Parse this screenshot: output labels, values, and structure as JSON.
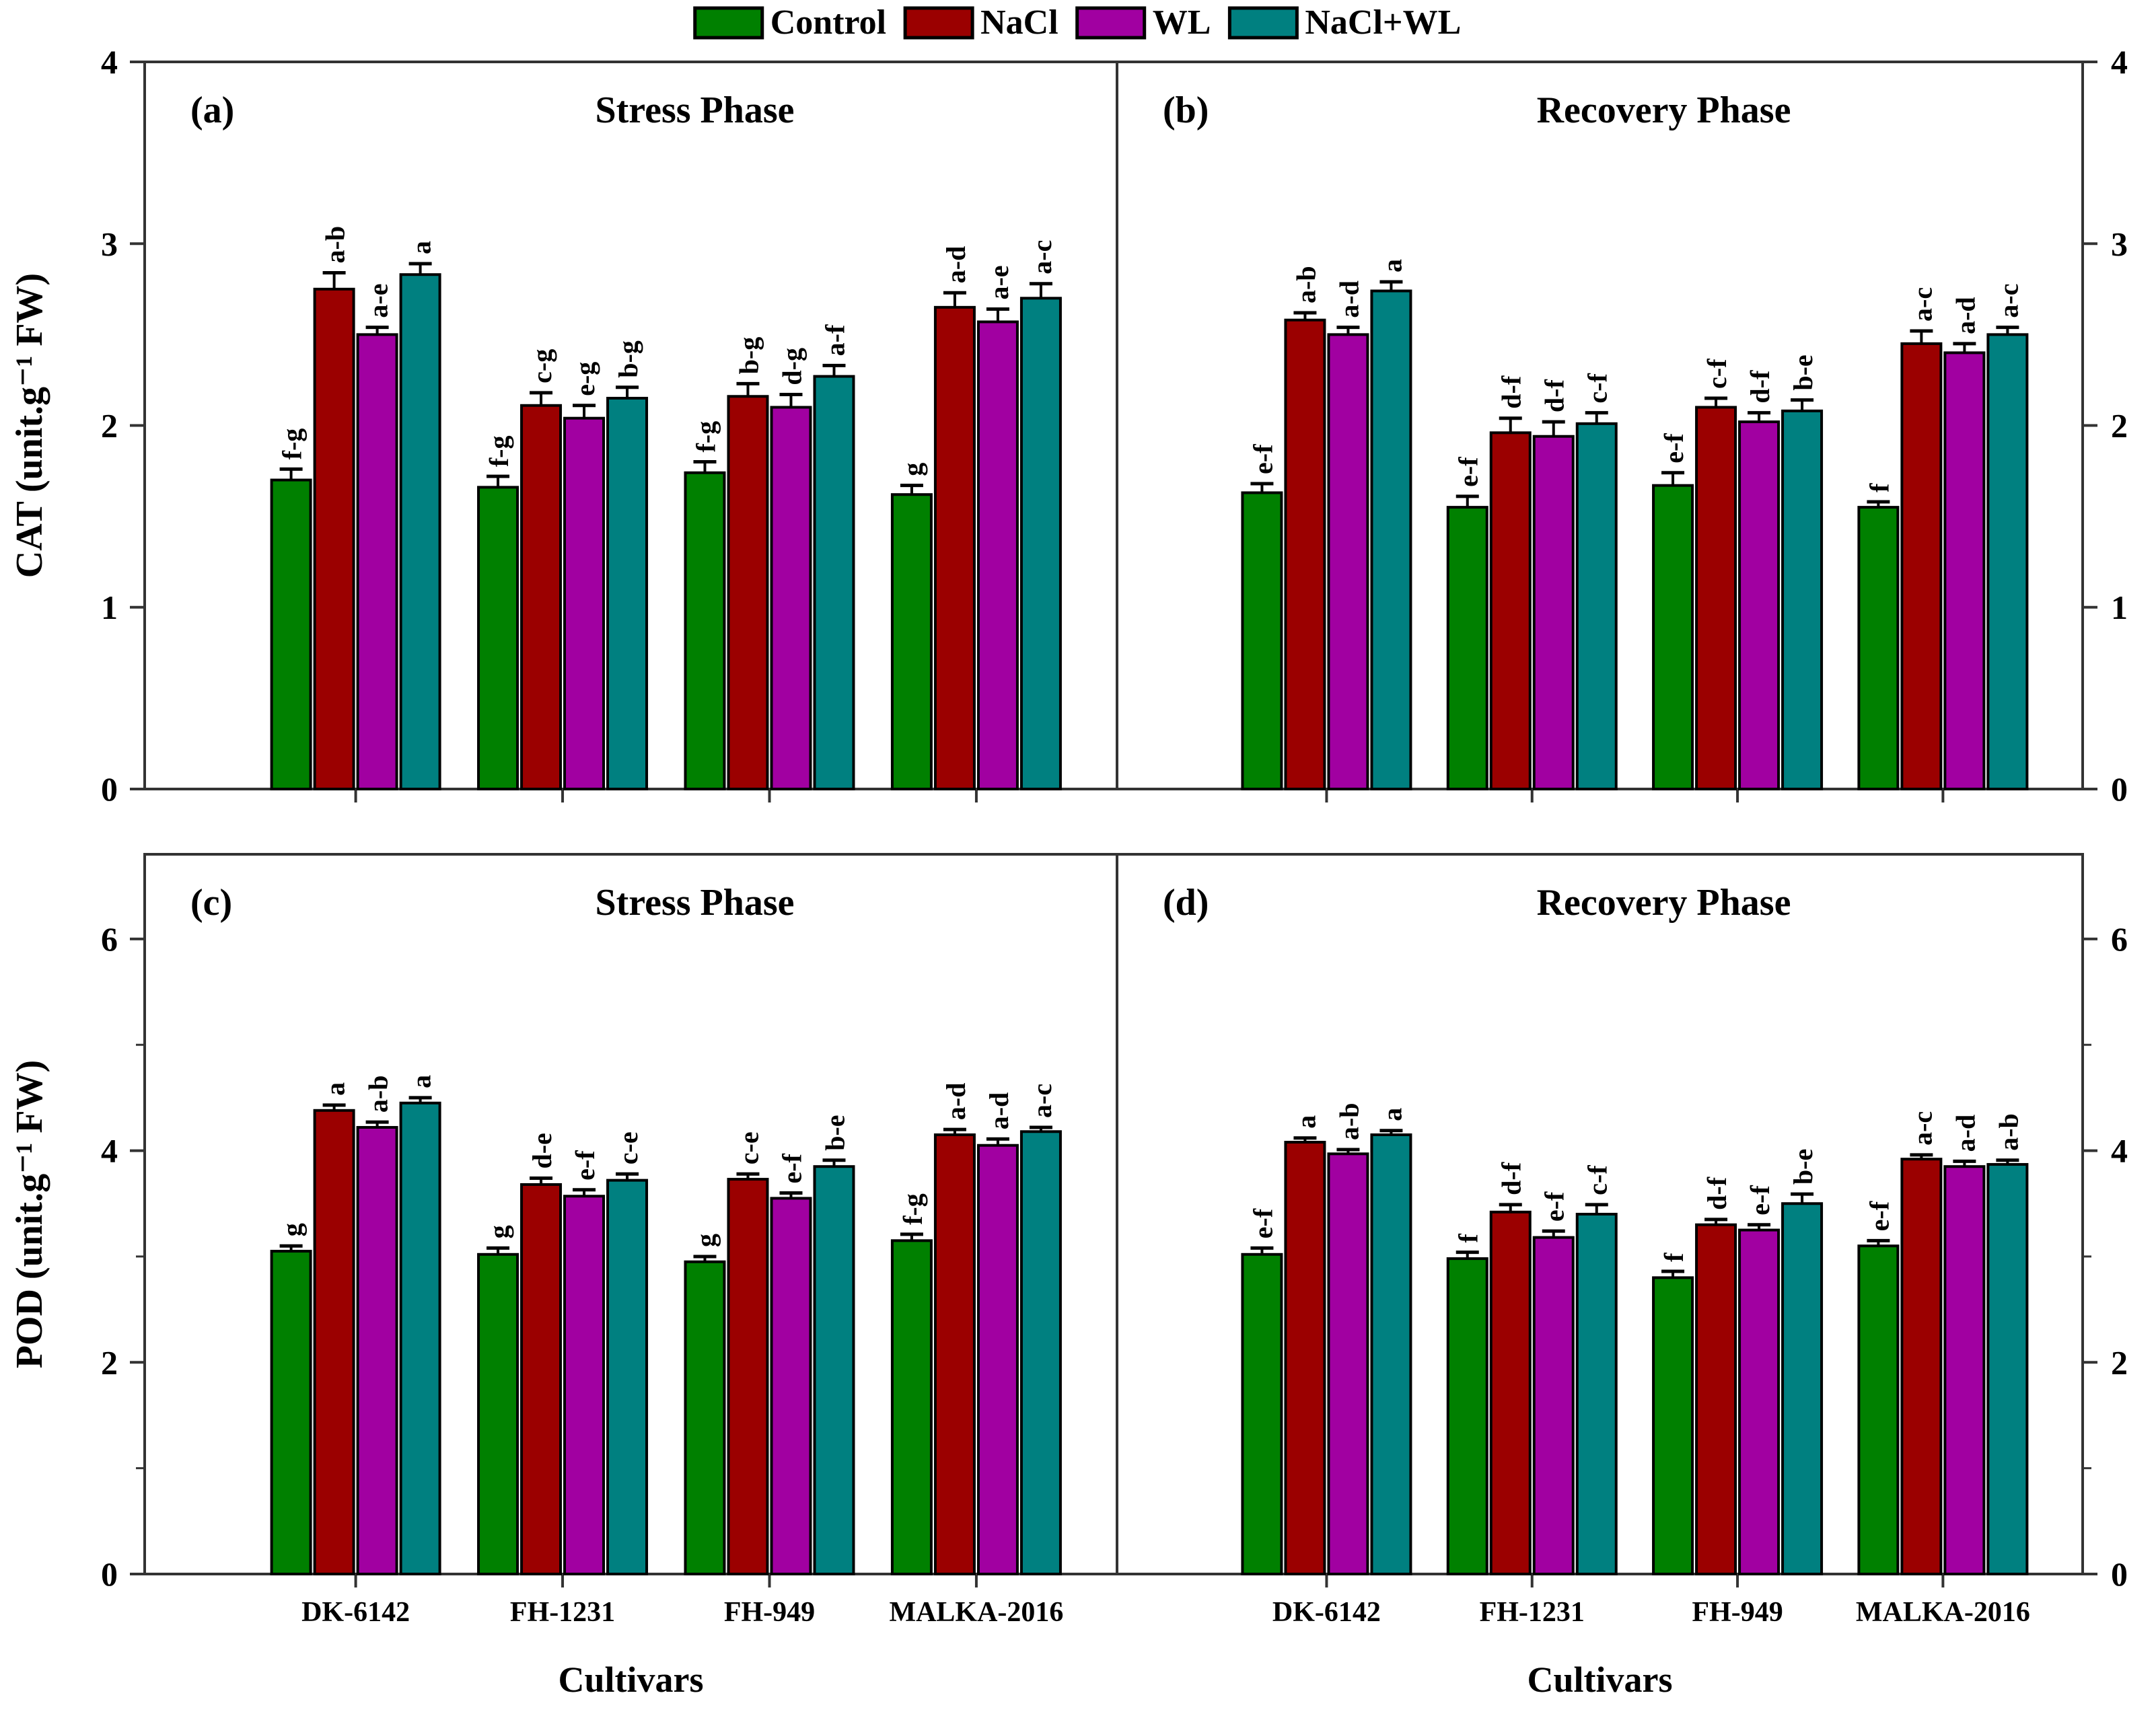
{
  "legend": {
    "items": [
      {
        "label": "Control",
        "color": "#008000"
      },
      {
        "label": "NaCl",
        "color": "#9b0000"
      },
      {
        "label": "WL",
        "color": "#a100a1"
      },
      {
        "label": "NaCl+WL",
        "color": "#008080"
      }
    ]
  },
  "xlabel": "Cultivars",
  "categories": [
    "DK-6142",
    "FH-1231",
    "FH-949",
    "MALKA-2016"
  ],
  "chart_data": [
    {
      "type": "bar",
      "panel_tag": "(a)",
      "title": "Stress Phase",
      "ylabel": "CAT (unit.g⁻¹ FW)",
      "ylim": [
        0,
        4
      ],
      "yticks": [
        0,
        1,
        2,
        3,
        4
      ],
      "yticks_minor": [],
      "series": [
        {
          "name": "Control",
          "values": [
            1.7,
            1.66,
            1.74,
            1.62
          ],
          "errors": [
            0.06,
            0.06,
            0.06,
            0.05
          ],
          "letters": [
            "f-g",
            "f-g",
            "f-g",
            "g"
          ]
        },
        {
          "name": "NaCl",
          "values": [
            2.75,
            2.11,
            2.16,
            2.65
          ],
          "errors": [
            0.09,
            0.07,
            0.07,
            0.08
          ],
          "letters": [
            "a-b",
            "c-g",
            "b-g",
            "a-d"
          ]
        },
        {
          "name": "WL",
          "values": [
            2.5,
            2.04,
            2.1,
            2.57
          ],
          "errors": [
            0.04,
            0.07,
            0.07,
            0.07
          ],
          "letters": [
            "a-e",
            "e-g",
            "d-g",
            "a-e"
          ]
        },
        {
          "name": "NaCl+WL",
          "values": [
            2.83,
            2.15,
            2.27,
            2.7
          ],
          "errors": [
            0.06,
            0.06,
            0.06,
            0.08
          ],
          "letters": [
            "a",
            "b-g",
            "a-f",
            "a-c"
          ]
        }
      ]
    },
    {
      "type": "bar",
      "panel_tag": "(b)",
      "title": "Recovery Phase",
      "ylabel": "",
      "ylim": [
        0,
        4
      ],
      "yticks": [
        0,
        1,
        2,
        3,
        4
      ],
      "yticks_minor": [],
      "series": [
        {
          "name": "Control",
          "values": [
            1.63,
            1.55,
            1.67,
            1.55
          ],
          "errors": [
            0.05,
            0.06,
            0.07,
            0.03
          ],
          "letters": [
            "e-f",
            "e-f",
            "e-f",
            "f"
          ]
        },
        {
          "name": "NaCl",
          "values": [
            2.58,
            1.96,
            2.1,
            2.45
          ],
          "errors": [
            0.04,
            0.08,
            0.05,
            0.07
          ],
          "letters": [
            "a-b",
            "d-f",
            "c-f",
            "a-c"
          ]
        },
        {
          "name": "WL",
          "values": [
            2.5,
            1.94,
            2.02,
            2.4
          ],
          "errors": [
            0.04,
            0.08,
            0.05,
            0.05
          ],
          "letters": [
            "a-d",
            "d-f",
            "d-f",
            "a-d"
          ]
        },
        {
          "name": "NaCl+WL",
          "values": [
            2.74,
            2.01,
            2.08,
            2.5
          ],
          "errors": [
            0.05,
            0.06,
            0.06,
            0.04
          ],
          "letters": [
            "a",
            "c-f",
            "b-e",
            "a-c"
          ]
        }
      ]
    },
    {
      "type": "bar",
      "panel_tag": "(c)",
      "title": "Stress Phase",
      "ylabel": "POD (unit.g⁻¹ FW)",
      "ylim": [
        0,
        6.8
      ],
      "yticks": [
        0,
        2,
        4,
        6
      ],
      "yticks_minor": [
        1,
        3,
        5
      ],
      "series": [
        {
          "name": "Control",
          "values": [
            3.05,
            3.02,
            2.95,
            3.15
          ],
          "errors": [
            0.05,
            0.06,
            0.05,
            0.06
          ],
          "letters": [
            "g",
            "g",
            "g",
            "f-g"
          ]
        },
        {
          "name": "NaCl",
          "values": [
            4.38,
            3.68,
            3.73,
            4.15
          ],
          "errors": [
            0.05,
            0.06,
            0.05,
            0.05
          ],
          "letters": [
            "a",
            "d-e",
            "c-e",
            "a-d"
          ]
        },
        {
          "name": "WL",
          "values": [
            4.22,
            3.57,
            3.55,
            4.05
          ],
          "errors": [
            0.05,
            0.06,
            0.05,
            0.06
          ],
          "letters": [
            "a-b",
            "e-f",
            "e-f",
            "a-d"
          ]
        },
        {
          "name": "NaCl+WL",
          "values": [
            4.45,
            3.72,
            3.85,
            4.18
          ],
          "errors": [
            0.05,
            0.06,
            0.06,
            0.04
          ],
          "letters": [
            "a",
            "c-e",
            "b-e",
            "a-c"
          ]
        }
      ]
    },
    {
      "type": "bar",
      "panel_tag": "(d)",
      "title": "Recovery Phase",
      "ylabel": "",
      "ylim": [
        0,
        6.8
      ],
      "yticks": [
        0,
        2,
        4,
        6
      ],
      "yticks_minor": [
        1,
        3,
        5
      ],
      "series": [
        {
          "name": "Control",
          "values": [
            3.02,
            2.98,
            2.8,
            3.1
          ],
          "errors": [
            0.06,
            0.06,
            0.06,
            0.05
          ],
          "letters": [
            "e-f",
            "f",
            "f",
            "e-f"
          ]
        },
        {
          "name": "NaCl",
          "values": [
            4.08,
            3.42,
            3.3,
            3.92
          ],
          "errors": [
            0.04,
            0.07,
            0.05,
            0.04
          ],
          "letters": [
            "a",
            "d-f",
            "d-f",
            "a-c"
          ]
        },
        {
          "name": "WL",
          "values": [
            3.97,
            3.18,
            3.25,
            3.85
          ],
          "errors": [
            0.04,
            0.06,
            0.05,
            0.05
          ],
          "letters": [
            "a-b",
            "e-f",
            "e-f",
            "a-d"
          ]
        },
        {
          "name": "NaCl+WL",
          "values": [
            4.15,
            3.4,
            3.5,
            3.87
          ],
          "errors": [
            0.04,
            0.09,
            0.09,
            0.04
          ],
          "letters": [
            "a",
            "c-f",
            "b-e",
            "a-b"
          ]
        }
      ]
    }
  ]
}
